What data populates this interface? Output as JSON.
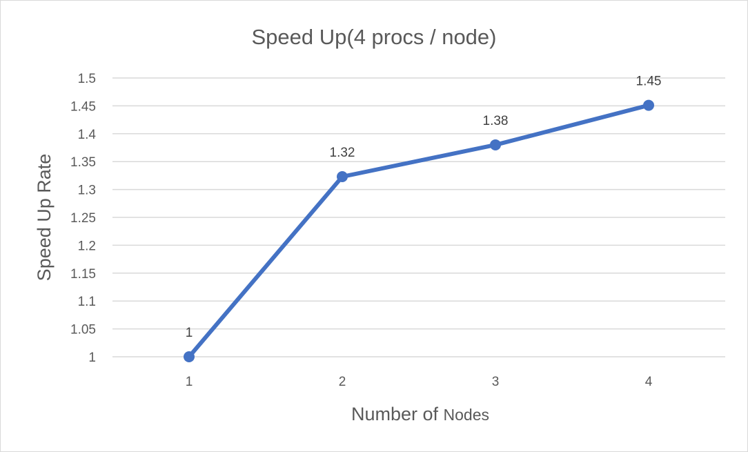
{
  "chart_data": {
    "type": "line",
    "title": "Speed Up(4 procs / node)",
    "xlabel_main": "Number of ",
    "xlabel_suffix": "Nodes",
    "ylabel": "Speed Up  Rate",
    "categories": [
      "1",
      "2",
      "3",
      "4"
    ],
    "series": [
      {
        "values": [
          1,
          1.323,
          1.38,
          1.451
        ],
        "data_labels": [
          "1",
          "1.32",
          "1.38",
          "1.45"
        ],
        "color": "#4472c4"
      }
    ],
    "ylim": [
      1,
      1.5
    ],
    "yticks": [
      "1",
      "1.05",
      "1.1",
      "1.15",
      "1.2",
      "1.25",
      "1.3",
      "1.35",
      "1.4",
      "1.45",
      "1.5"
    ],
    "grid": true,
    "legend": "none"
  }
}
